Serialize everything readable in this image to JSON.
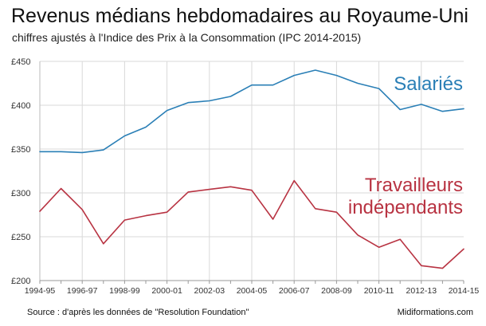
{
  "title": "Revenus médians hebdomadaires au Royaume-Uni",
  "subtitle": "chiffres ajustés à l'Indice des Prix à la Consommation (IPC 2014-2015)",
  "source": "Source : d'après les données de \"Resolution Foundation\"",
  "credit": "Midiformations.com",
  "chart_data": {
    "type": "line",
    "title": "Revenus médians hebdomadaires au Royaume-Uni",
    "subtitle": "chiffres ajustés à l'Indice des Prix à la Consommation (IPC 2014-2015)",
    "xlabel": "",
    "ylabel": "",
    "ylim": [
      200,
      450
    ],
    "yticks": [
      200,
      250,
      300,
      350,
      400,
      450
    ],
    "ytick_labels": [
      "£200",
      "£250",
      "£300",
      "£350",
      "£400",
      "£450"
    ],
    "x": [
      "1994-95",
      "1995-96",
      "1996-97",
      "1997-98",
      "1998-99",
      "1999-00",
      "2000-01",
      "2001-02",
      "2002-03",
      "2003-04",
      "2004-05",
      "2005-06",
      "2006-07",
      "2007-08",
      "2008-09",
      "2009-10",
      "2010-11",
      "2011-12",
      "2012-13",
      "2013-14",
      "2014-15"
    ],
    "xtick_labels": [
      "1994-95",
      "",
      "1996-97",
      "",
      "1998-99",
      "",
      "2000-01",
      "",
      "2002-03",
      "",
      "2004-05",
      "",
      "2006-07",
      "",
      "2008-09",
      "",
      "2010-11",
      "",
      "2012-13",
      "",
      "2014-15"
    ],
    "grid": true,
    "series": [
      {
        "name": "Salariés",
        "color": "#2a7fb6",
        "values": [
          347,
          347,
          346,
          349,
          365,
          375,
          394,
          403,
          405,
          410,
          423,
          423,
          434,
          440,
          434,
          425,
          419,
          395,
          401,
          393,
          396
        ]
      },
      {
        "name": "Travailleurs indépendants",
        "label_lines": [
          "Travailleurs",
          "indépendants"
        ],
        "color": "#b83342",
        "values": [
          279,
          305,
          281,
          242,
          269,
          274,
          278,
          301,
          304,
          307,
          303,
          270,
          314,
          282,
          278,
          252,
          238,
          247,
          217,
          214,
          236
        ]
      }
    ]
  }
}
